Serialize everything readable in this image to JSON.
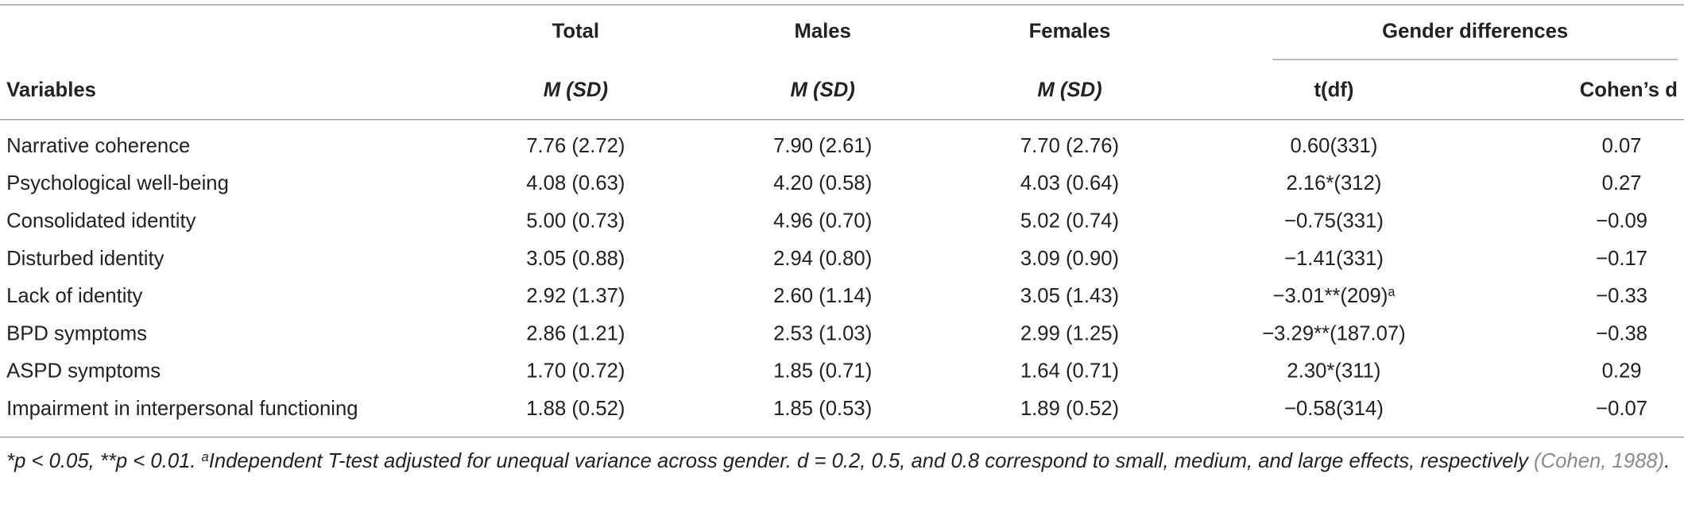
{
  "header": {
    "group": "Gender differences",
    "variables": "Variables",
    "columns": [
      "Total",
      "Males",
      "Females"
    ],
    "subcolumns": [
      "M (SD)",
      "M (SD)",
      "M (SD)",
      "t(df)",
      "Cohen’s d"
    ]
  },
  "table": {
    "rows": [
      [
        "Narrative coherence",
        "7.76 (2.72)",
        "7.90 (2.61)",
        "7.70 (2.76)",
        {
          "text": "0.60(331)"
        },
        "0.07"
      ],
      [
        "Psychological well-being",
        "4.08 (0.63)",
        "4.20 (0.58)",
        "4.03 (0.64)",
        {
          "text": "2.16*(312)"
        },
        "0.27"
      ],
      [
        "Consolidated identity",
        "5.00 (0.73)",
        "4.96 (0.70)",
        "5.02 (0.74)",
        {
          "text": "−0.75(331)"
        },
        "−0.09"
      ],
      [
        "Disturbed identity",
        "3.05 (0.88)",
        "2.94 (0.80)",
        "3.09 (0.90)",
        {
          "text": "−1.41(331)"
        },
        "−0.17"
      ],
      [
        "Lack of identity",
        "2.92 (1.37)",
        "2.60 (1.14)",
        "3.05 (1.43)",
        {
          "text": "−3.01**(209)",
          "sup": "a"
        },
        "−0.33"
      ],
      [
        "BPD symptoms",
        "2.86 (1.21)",
        "2.53 (1.03)",
        "2.99 (1.25)",
        {
          "text": "−3.29**(187.07)"
        },
        "−0.38"
      ],
      [
        "ASPD symptoms",
        "1.70 (0.72)",
        "1.85 (0.71)",
        "1.64 (0.71)",
        {
          "text": "2.30*(311)"
        },
        "0.29"
      ],
      [
        "Impairment in interpersonal functioning",
        "1.88 (0.52)",
        "1.85 (0.53)",
        "1.89 (0.52)",
        {
          "text": "−0.58(314)"
        },
        "−0.07"
      ]
    ]
  },
  "footnote": {
    "significance": "*p < 0.05, **p < 0.01.",
    "sup": "a",
    "text": "Independent T-test adjusted for unequal variance across gender. d = 0.2, 0.5, and 0.8 correspond to small, medium, and large effects, respectively",
    "citation": "(Cohen, 1988)",
    "end": "."
  }
}
